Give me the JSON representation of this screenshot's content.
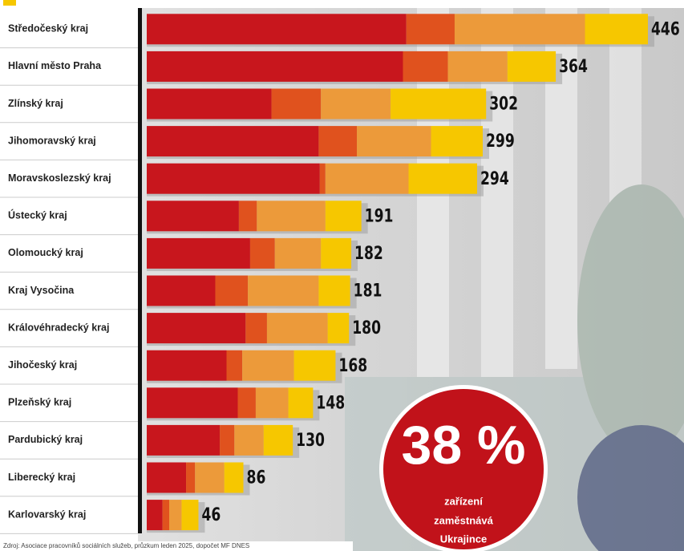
{
  "chart_data": {
    "type": "stacked-barh",
    "categories": [
      "Středočeský kraj",
      "Hlavní město Praha",
      "Zlínský kraj",
      "Jihomoravský kraj",
      "Moravskoslezský kraj",
      "Ústecký kraj",
      "Olomoucký kraj",
      "Kraj Vysočina",
      "Královéhradecký kraj",
      "Jihočeský kraj",
      "Plzeňský kraj",
      "Pardubický kraj",
      "Liberecký kraj",
      "Karlovarský kraj"
    ],
    "series": [
      {
        "color": "#c8161d",
        "values": [
          231,
          228,
          111,
          153,
          154,
          82,
          92,
          61,
          88,
          71,
          81,
          65,
          35,
          14
        ]
      },
      {
        "color": "#e0521e",
        "values": [
          43,
          40,
          44,
          34,
          5,
          16,
          22,
          29,
          19,
          14,
          16,
          13,
          8,
          6
        ]
      },
      {
        "color": "#ec9a3a",
        "values": [
          116,
          53,
          62,
          66,
          74,
          61,
          41,
          63,
          54,
          46,
          29,
          26,
          26,
          11
        ]
      },
      {
        "color": "#f6c700",
        "values": [
          56,
          43,
          85,
          46,
          61,
          32,
          27,
          28,
          19,
          37,
          22,
          26,
          17,
          15
        ]
      }
    ],
    "totals": [
      446,
      364,
      302,
      299,
      294,
      191,
      182,
      181,
      180,
      168,
      148,
      130,
      86,
      46
    ],
    "callout": {
      "value": "38 %",
      "text": [
        "zařízení",
        "zaměstnává",
        "Ukrajince"
      ]
    },
    "source": "Zdroj: Asociace pracovníků sociálních služeb, průzkum leden 2025, dopočet MF DNES"
  }
}
